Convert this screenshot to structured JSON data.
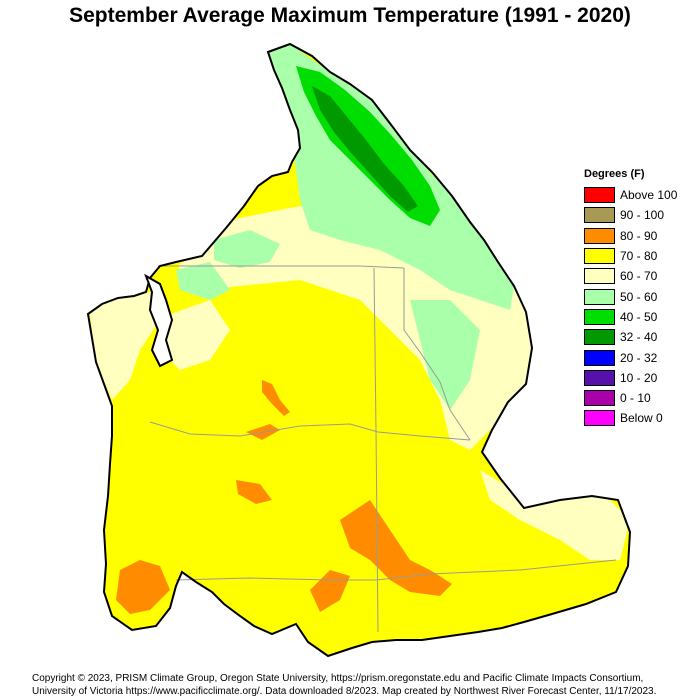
{
  "title": "September Average Maximum Temperature (1991 - 2020)",
  "legend": {
    "title": "Degrees (F)",
    "items": [
      {
        "label": "Above 100",
        "color": "#ff0000"
      },
      {
        "label": "90 - 100",
        "color": "#a89a55"
      },
      {
        "label": "80 - 90",
        "color": "#ff8c00"
      },
      {
        "label": "70 - 80",
        "color": "#ffff00"
      },
      {
        "label": "60 - 70",
        "color": "#ffffc0"
      },
      {
        "label": "50 - 60",
        "color": "#aaffaa"
      },
      {
        "label": "40 - 50",
        "color": "#00dd00"
      },
      {
        "label": "32 - 40",
        "color": "#009900"
      },
      {
        "label": "20 - 32",
        "color": "#0000ff"
      },
      {
        "label": "10 - 20",
        "color": "#5511aa"
      },
      {
        "label": "0 - 10",
        "color": "#aa00aa"
      },
      {
        "label": "Below 0",
        "color": "#ff00ff"
      }
    ]
  },
  "credits": {
    "line1": "Copyright © 2023, PRISM Climate Group, Oregon State University, https://prism.oregonstate.edu and Pacific Climate Impacts Consortium,",
    "line2": "University of Victoria https://www.pacificclimate.org/.  Data downloaded 8/2023. Map created by Northwest River Forecast Center, 11/17/2023."
  }
}
